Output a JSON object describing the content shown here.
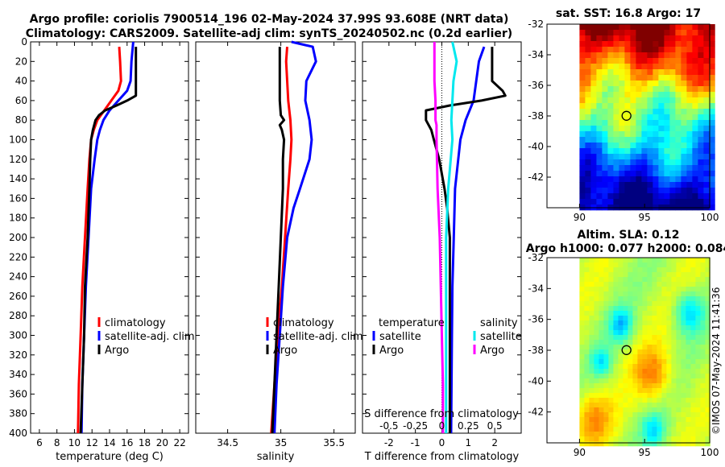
{
  "title": {
    "line1": "Argo profile: coriolis 7900514_196 02-May-2024 37.99S 93.608E (NRT data)",
    "line2": "Climatology: CARS2009. Satellite-adj clim: synTS_20240502.nc (0.2d earlier)"
  },
  "sst_map": {
    "title": "sat. SST: 16.8 Argo: 17"
  },
  "sla_map": {
    "title1": "Altim. SLA: 0.12",
    "title2": "Argo h1000: 0.077 h2000: 0.084"
  },
  "watermark": "©IMOS 07-May-2024 11:41:36",
  "legend": {
    "climatology": "climatology",
    "satellite_adj": "satellite-adj. clim",
    "argo": "Argo",
    "temperature": "temperature",
    "salinity": "salinity",
    "satellite": "satellite"
  },
  "colors": {
    "climatology": "#ff0000",
    "satellite": "#0000ff",
    "argo": "#000000",
    "sal_satellite": "#00e8ee",
    "sal_argo": "#ff00ff"
  },
  "chart_data": [
    {
      "type": "line",
      "id": "temperature",
      "xlabel": "temperature (deg C)",
      "ylabel": "",
      "xlim": [
        5,
        23
      ],
      "ylim": [
        0,
        400
      ],
      "xticks": [
        6,
        8,
        10,
        12,
        14,
        16,
        18,
        20,
        22
      ],
      "yticks": [
        0,
        20,
        40,
        60,
        80,
        100,
        120,
        140,
        160,
        180,
        200,
        220,
        240,
        260,
        280,
        300,
        320,
        340,
        360,
        380,
        400
      ],
      "series": [
        {
          "name": "climatology",
          "depth": [
            5,
            20,
            40,
            50,
            60,
            70,
            80,
            90,
            100,
            120,
            150,
            200,
            250,
            300,
            350,
            400
          ],
          "values": [
            15.1,
            15.2,
            15.3,
            15.0,
            14.2,
            13.4,
            12.6,
            12.2,
            11.9,
            11.7,
            11.5,
            11.2,
            10.9,
            10.7,
            10.5,
            10.4
          ]
        },
        {
          "name": "satellite-adj. clim",
          "depth": [
            0,
            20,
            40,
            50,
            60,
            70,
            80,
            90,
            100,
            120,
            150,
            200,
            250,
            300,
            350,
            400
          ],
          "values": [
            16.7,
            16.5,
            16.4,
            16.0,
            15.0,
            14.0,
            13.3,
            12.9,
            12.6,
            12.3,
            11.9,
            11.6,
            11.3,
            11.1,
            10.9,
            10.8
          ]
        },
        {
          "name": "Argo",
          "depth": [
            5,
            20,
            40,
            55,
            60,
            65,
            70,
            75,
            80,
            90,
            100,
            120,
            150,
            200,
            250,
            300,
            350,
            400
          ],
          "values": [
            17.0,
            17.0,
            17.0,
            17.0,
            16.0,
            14.8,
            13.5,
            12.8,
            12.4,
            12.1,
            11.9,
            11.8,
            11.7,
            11.5,
            11.2,
            11.1,
            10.9,
            10.7
          ]
        }
      ]
    },
    {
      "type": "line",
      "id": "salinity",
      "xlabel": "salinity",
      "xlim": [
        34.2,
        35.7
      ],
      "ylim": [
        0,
        400
      ],
      "xticks": [
        34.5,
        35,
        35.5
      ],
      "series": [
        {
          "name": "climatology",
          "depth": [
            5,
            20,
            40,
            60,
            80,
            100,
            120,
            150,
            200,
            250,
            300,
            350,
            400
          ],
          "values": [
            35.06,
            35.05,
            35.06,
            35.07,
            35.09,
            35.1,
            35.09,
            35.07,
            35.04,
            35.01,
            34.97,
            34.94,
            34.91
          ]
        },
        {
          "name": "satellite-adj. clim",
          "depth": [
            0,
            5,
            20,
            40,
            60,
            80,
            100,
            120,
            150,
            170,
            200,
            250,
            300,
            350,
            400
          ],
          "values": [
            35.1,
            35.3,
            35.33,
            35.24,
            35.23,
            35.27,
            35.29,
            35.27,
            35.18,
            35.12,
            35.06,
            35.02,
            34.99,
            34.96,
            34.94
          ]
        },
        {
          "name": "Argo",
          "depth": [
            5,
            20,
            40,
            60,
            75,
            80,
            85,
            90,
            100,
            120,
            150,
            200,
            250,
            300,
            350,
            400
          ],
          "values": [
            34.99,
            34.99,
            34.99,
            34.99,
            35.0,
            35.03,
            34.99,
            35.01,
            35.03,
            35.02,
            35.02,
            35.0,
            34.98,
            34.96,
            34.94,
            34.92
          ]
        }
      ]
    },
    {
      "type": "line",
      "id": "difference",
      "xlabel": "T difference from climatology",
      "xlabel_top": "S difference from climatology",
      "xlim": [
        -3,
        3
      ],
      "ylim": [
        0,
        400
      ],
      "xticks": [
        -2,
        -1,
        0,
        1,
        2
      ],
      "xticks_s": [
        "-0.5",
        "-0.25",
        "0",
        "0.25",
        "0.5"
      ],
      "series": [
        {
          "name": "temperature satellite",
          "depth": [
            5,
            20,
            40,
            60,
            80,
            100,
            150,
            200,
            250,
            300,
            400
          ],
          "values": [
            1.6,
            1.4,
            1.3,
            1.2,
            0.9,
            0.7,
            0.5,
            0.45,
            0.4,
            0.38,
            0.35
          ]
        },
        {
          "name": "temperature Argo",
          "depth": [
            5,
            20,
            40,
            50,
            55,
            60,
            65,
            70,
            75,
            80,
            90,
            100,
            120,
            150,
            170,
            200,
            250,
            300,
            400
          ],
          "values": [
            1.9,
            1.9,
            1.9,
            2.3,
            2.4,
            1.5,
            0.3,
            -0.6,
            -0.6,
            -0.6,
            -0.4,
            -0.3,
            -0.1,
            0.1,
            0.2,
            0.3,
            0.3,
            0.3,
            0.3
          ]
        },
        {
          "name": "salinity satellite",
          "depth": [
            0,
            20,
            40,
            60,
            80,
            100,
            150,
            200,
            250,
            300,
            400
          ],
          "values": [
            0.1,
            0.14,
            0.11,
            0.1,
            0.09,
            0.1,
            0.06,
            0.04,
            0.04,
            0.04,
            0.04
          ]
        },
        {
          "name": "salinity Argo",
          "depth": [
            0,
            20,
            40,
            60,
            80,
            85,
            100,
            150,
            200,
            250,
            300,
            350,
            400
          ],
          "values": [
            -0.07,
            -0.07,
            -0.07,
            -0.06,
            -0.06,
            -0.05,
            -0.05,
            -0.04,
            -0.02,
            -0.01,
            0.0,
            0.01,
            0.01
          ]
        }
      ]
    },
    {
      "type": "heatmap",
      "id": "sst_map",
      "xlim": [
        87.5,
        100
      ],
      "ylim": [
        -44,
        -32
      ],
      "xticks": [
        90,
        95,
        100
      ],
      "yticks": [
        -32,
        -34,
        -36,
        -38,
        -40,
        -42
      ],
      "marker": {
        "lon": 93.608,
        "lat": -37.99
      }
    },
    {
      "type": "heatmap",
      "id": "sla_map",
      "xlim": [
        87.5,
        100
      ],
      "ylim": [
        -44,
        -32
      ],
      "xticks": [
        90,
        95,
        100
      ],
      "yticks": [
        -32,
        -34,
        -36,
        -38,
        -40,
        -42
      ],
      "marker": {
        "lon": 93.608,
        "lat": -37.99
      }
    }
  ]
}
